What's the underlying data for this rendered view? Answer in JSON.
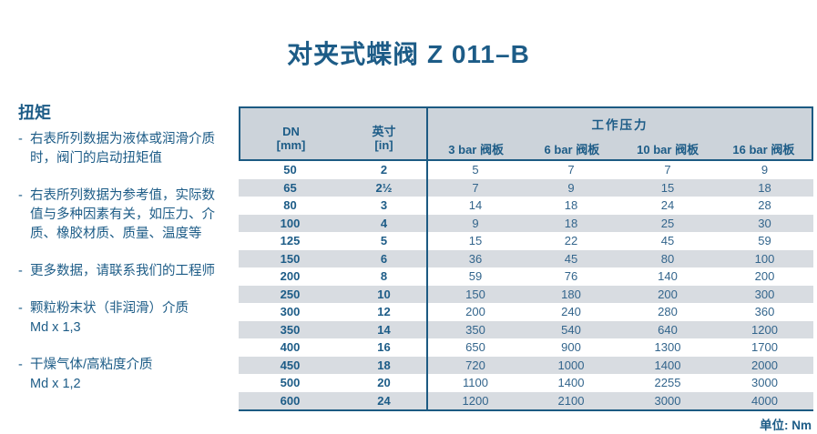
{
  "title": "对夹式蝶阀 Z 011–B",
  "sidebar": {
    "heading": "扭矩",
    "bullet": "-",
    "notes": [
      "右表所列数据为液体或润滑介质\n时，阀门的启动扭矩值",
      "右表所列数据为参考值，实际数\n值与多种因素有关，如压力、介\n质、橡胶材质、质量、温度等",
      "更多数据，请联系我们的工程师",
      "颗粒粉末状（非润滑）介质\nMd x 1,3",
      "干燥气体/高粘度介质\nMd x 1,2"
    ]
  },
  "table": {
    "col_dn": "DN\n[mm]",
    "col_inch": "英寸\n[in]",
    "pressure_group": "工作压力",
    "pressure_cols": [
      "3 bar 阀板",
      "6 bar 阀板",
      "10 bar 阀板",
      "16 bar 阀板"
    ],
    "rows": [
      {
        "dn": "50",
        "inch": "2",
        "values": [
          "5",
          "7",
          "7",
          "9"
        ]
      },
      {
        "dn": "65",
        "inch": "2½",
        "values": [
          "7",
          "9",
          "15",
          "18"
        ]
      },
      {
        "dn": "80",
        "inch": "3",
        "values": [
          "14",
          "18",
          "24",
          "28"
        ]
      },
      {
        "dn": "100",
        "inch": "4",
        "values": [
          "9",
          "18",
          "25",
          "30"
        ]
      },
      {
        "dn": "125",
        "inch": "5",
        "values": [
          "15",
          "22",
          "45",
          "59"
        ]
      },
      {
        "dn": "150",
        "inch": "6",
        "values": [
          "36",
          "45",
          "80",
          "100"
        ]
      },
      {
        "dn": "200",
        "inch": "8",
        "values": [
          "59",
          "76",
          "140",
          "200"
        ]
      },
      {
        "dn": "250",
        "inch": "10",
        "values": [
          "150",
          "180",
          "200",
          "300"
        ]
      },
      {
        "dn": "300",
        "inch": "12",
        "values": [
          "200",
          "240",
          "280",
          "360"
        ]
      },
      {
        "dn": "350",
        "inch": "14",
        "values": [
          "350",
          "540",
          "640",
          "1200"
        ]
      },
      {
        "dn": "400",
        "inch": "16",
        "values": [
          "650",
          "900",
          "1300",
          "1700"
        ]
      },
      {
        "dn": "450",
        "inch": "18",
        "values": [
          "720",
          "1000",
          "1400",
          "2000"
        ]
      },
      {
        "dn": "500",
        "inch": "20",
        "values": [
          "1100",
          "1400",
          "2255",
          "3000"
        ]
      },
      {
        "dn": "600",
        "inch": "24",
        "values": [
          "1200",
          "2100",
          "3000",
          "4000"
        ]
      }
    ],
    "unit_note": "单位: Nm"
  },
  "colors": {
    "ink": "#1d5c87",
    "value_text": "#33658c",
    "border": "#1c5a82",
    "header_bg": "#ccd3da",
    "row_stripe": "#d8dce1"
  }
}
